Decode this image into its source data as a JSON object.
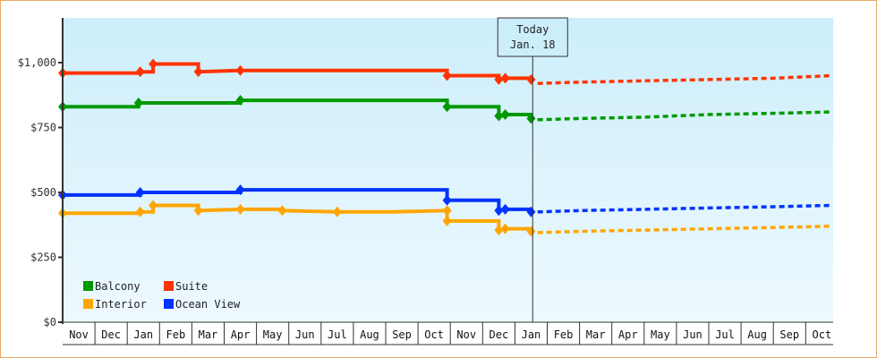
{
  "chart_data": {
    "type": "line",
    "title": "",
    "xlabel": "",
    "ylabel": "",
    "ylim": [
      0,
      1200
    ],
    "yticks": [
      {
        "value": 0,
        "label": "$0"
      },
      {
        "value": 250,
        "label": "$250"
      },
      {
        "value": 500,
        "label": "$500"
      },
      {
        "value": 750,
        "label": "$750"
      },
      {
        "value": 1000,
        "label": "$1,000"
      }
    ],
    "x_months": [
      "Nov",
      "Dec",
      "Jan",
      "Feb",
      "Mar",
      "Apr",
      "May",
      "Jun",
      "Jul",
      "Aug",
      "Sep",
      "Oct",
      "Nov",
      "Dec",
      "Jan",
      "Feb",
      "Mar",
      "Apr",
      "May",
      "Jun",
      "Jul",
      "Aug",
      "Sep",
      "Oct"
    ],
    "today_marker": {
      "line1": "Today",
      "line2": "Jan. 18",
      "month_index": 14.55
    },
    "grid": false,
    "legend_position": "lower-left",
    "series": [
      {
        "name": "Balcony",
        "color": "#009900",
        "history": [
          [
            0,
            830
          ],
          [
            2.35,
            830
          ],
          [
            2.35,
            845
          ],
          [
            5.5,
            845
          ],
          [
            5.5,
            855
          ],
          [
            8.5,
            855
          ],
          [
            10.2,
            855
          ],
          [
            11.9,
            855
          ],
          [
            11.9,
            830
          ],
          [
            13.5,
            830
          ],
          [
            13.5,
            795
          ],
          [
            13.7,
            795
          ],
          [
            13.7,
            800
          ],
          [
            14.5,
            800
          ],
          [
            14.5,
            785
          ]
        ],
        "forecast": [
          [
            14.7,
            780
          ],
          [
            16,
            785
          ],
          [
            18,
            790
          ],
          [
            20,
            800
          ],
          [
            22,
            805
          ],
          [
            23.8,
            810
          ]
        ]
      },
      {
        "name": "Suite",
        "color": "#ff3300",
        "history": [
          [
            0,
            960
          ],
          [
            2.4,
            960
          ],
          [
            2.4,
            965
          ],
          [
            2.8,
            965
          ],
          [
            2.8,
            995
          ],
          [
            4.2,
            995
          ],
          [
            4.2,
            965
          ],
          [
            5.5,
            970
          ],
          [
            8.5,
            970
          ],
          [
            10.2,
            970
          ],
          [
            11.9,
            970
          ],
          [
            11.9,
            950
          ],
          [
            13.5,
            950
          ],
          [
            13.5,
            935
          ],
          [
            13.7,
            940
          ],
          [
            14.5,
            940
          ],
          [
            14.5,
            935
          ]
        ],
        "forecast": [
          [
            14.7,
            920
          ],
          [
            16,
            925
          ],
          [
            18,
            930
          ],
          [
            20,
            935
          ],
          [
            22,
            940
          ],
          [
            23.8,
            950
          ]
        ]
      },
      {
        "name": "Interior",
        "color": "#ffa500",
        "history": [
          [
            0,
            420
          ],
          [
            2.4,
            420
          ],
          [
            2.4,
            425
          ],
          [
            2.8,
            425
          ],
          [
            2.8,
            450
          ],
          [
            4.2,
            450
          ],
          [
            4.2,
            430
          ],
          [
            5.5,
            435
          ],
          [
            6.8,
            435
          ],
          [
            6.8,
            430
          ],
          [
            8.5,
            425
          ],
          [
            10.2,
            425
          ],
          [
            11.9,
            430
          ],
          [
            11.9,
            390
          ],
          [
            13.5,
            390
          ],
          [
            13.5,
            355
          ],
          [
            13.7,
            360
          ],
          [
            14.5,
            360
          ],
          [
            14.5,
            350
          ]
        ],
        "forecast": [
          [
            14.7,
            345
          ],
          [
            16,
            350
          ],
          [
            18,
            355
          ],
          [
            20,
            360
          ],
          [
            22,
            365
          ],
          [
            23.8,
            370
          ]
        ]
      },
      {
        "name": "Ocean View",
        "color": "#0033ff",
        "history": [
          [
            0,
            490
          ],
          [
            2.4,
            490
          ],
          [
            2.4,
            500
          ],
          [
            5.5,
            500
          ],
          [
            5.5,
            510
          ],
          [
            8.5,
            510
          ],
          [
            10.2,
            510
          ],
          [
            11.9,
            510
          ],
          [
            11.9,
            470
          ],
          [
            13.5,
            470
          ],
          [
            13.5,
            430
          ],
          [
            13.7,
            435
          ],
          [
            14.5,
            435
          ],
          [
            14.5,
            425
          ]
        ],
        "forecast": [
          [
            14.7,
            425
          ],
          [
            16,
            430
          ],
          [
            18,
            435
          ],
          [
            20,
            440
          ],
          [
            22,
            445
          ],
          [
            23.8,
            450
          ]
        ]
      }
    ],
    "legend": [
      {
        "name": "Balcony",
        "color": "#009900"
      },
      {
        "name": "Suite",
        "color": "#ff3300"
      },
      {
        "name": "Interior",
        "color": "#ffa500"
      },
      {
        "name": "Ocean View",
        "color": "#0033ff"
      }
    ]
  },
  "style": {
    "plot_bg_top": "#cceefb",
    "plot_bg_bottom": "#eef9fe",
    "frame_border": "#e8a865",
    "axis_color": "#333333"
  }
}
